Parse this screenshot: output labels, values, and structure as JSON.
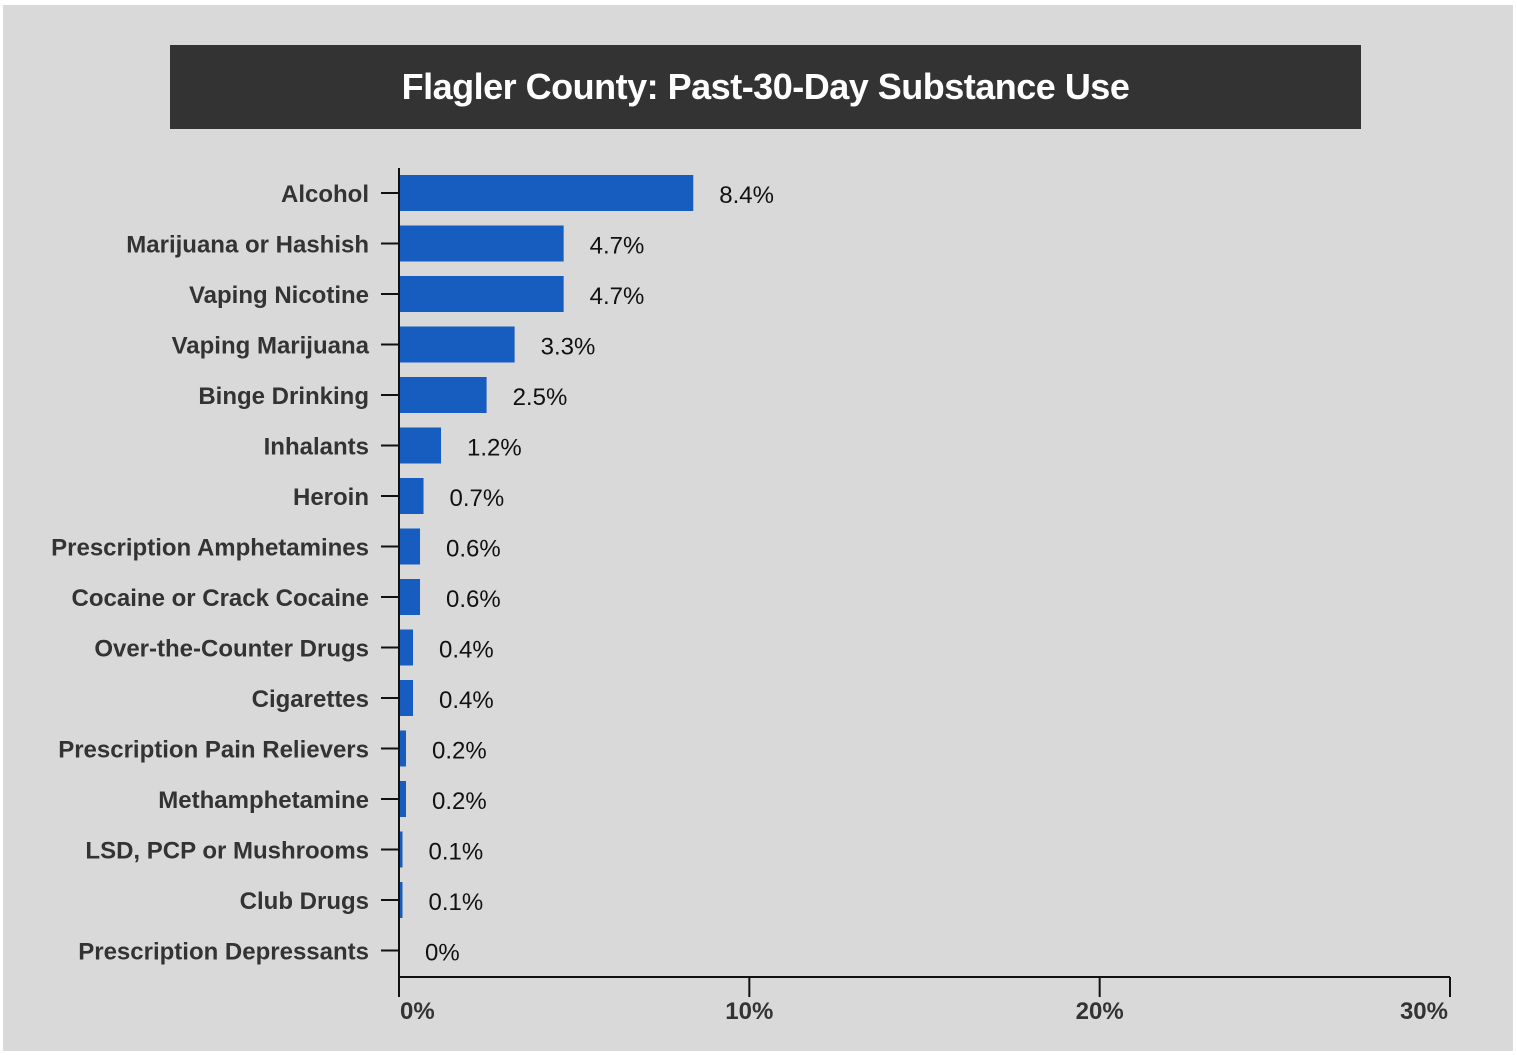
{
  "chart_data": {
    "type": "bar",
    "orientation": "horizontal",
    "title": "Flagler County: Past-30-Day Substance Use",
    "categories": [
      "Alcohol",
      "Marijuana or Hashish",
      "Vaping Nicotine",
      "Vaping Marijuana",
      "Binge Drinking",
      "Inhalants",
      "Heroin",
      "Prescription Amphetamines",
      "Cocaine or Crack Cocaine",
      "Over-the-Counter Drugs",
      "Cigarettes",
      "Prescription Pain Relievers",
      "Methamphetamine",
      "LSD, PCP or Mushrooms",
      "Club Drugs",
      "Prescription Depressants"
    ],
    "values": [
      8.4,
      4.7,
      4.7,
      3.3,
      2.5,
      1.2,
      0.7,
      0.6,
      0.6,
      0.4,
      0.4,
      0.2,
      0.2,
      0.1,
      0.1,
      0
    ],
    "value_labels": [
      "8.4%",
      "4.7%",
      "4.7%",
      "3.3%",
      "2.5%",
      "1.2%",
      "0.7%",
      "0.6%",
      "0.6%",
      "0.4%",
      "0.4%",
      "0.2%",
      "0.2%",
      "0.1%",
      "0.1%",
      "0%"
    ],
    "xlim": [
      0,
      30
    ],
    "x_ticks": [
      0,
      10,
      20,
      30
    ],
    "x_tick_labels": [
      "0%",
      "10%",
      "20%",
      "30%"
    ],
    "xlabel": "",
    "ylabel": "",
    "grid": false,
    "legend": "none",
    "colors": {
      "bar": "#175cbf",
      "background": "#d9d9d9",
      "title_bar": "#333333",
      "title_text": "#ffffff",
      "axis": "#111111"
    }
  }
}
